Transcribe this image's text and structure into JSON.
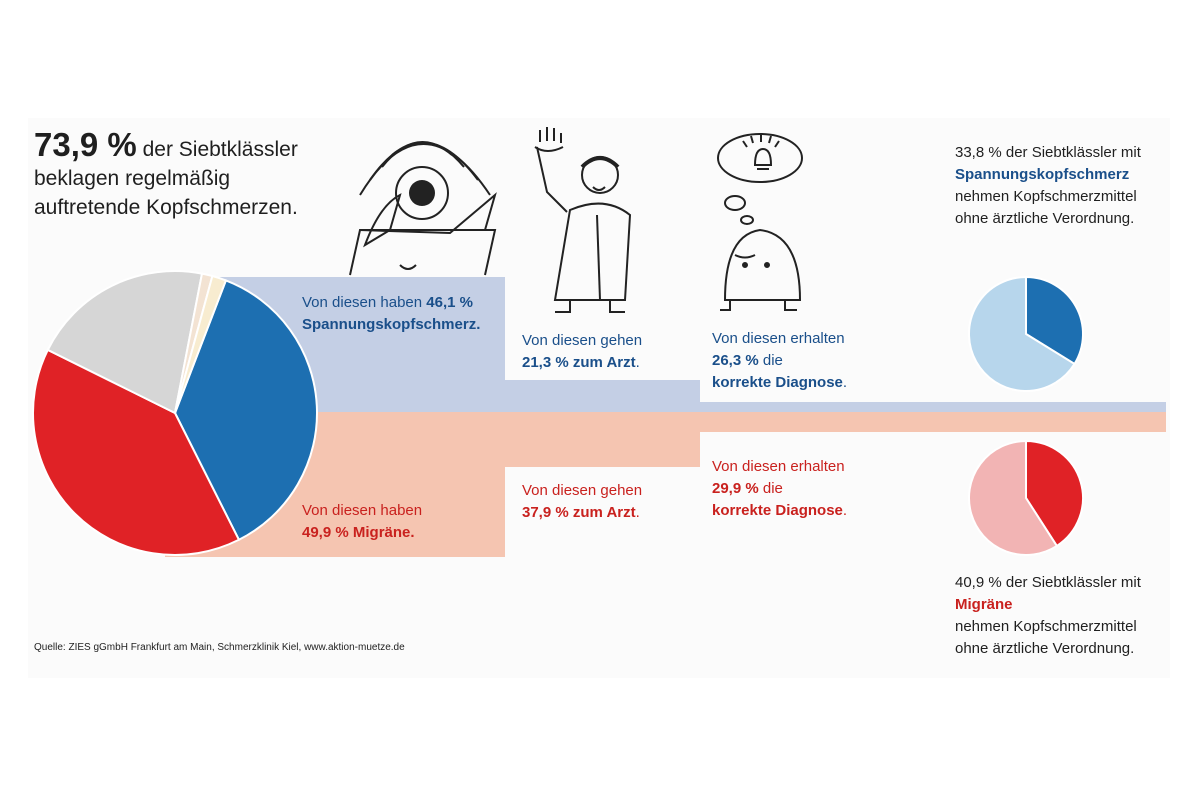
{
  "headline": {
    "big": "73,9 %",
    "rest1": " der Siebtklässler",
    "line2": "beklagen regelmäßig",
    "line3": "auftretende Kopfschmerzen."
  },
  "tension": {
    "have_prefix": "Von diesen haben ",
    "have_value": "46,1 %",
    "have_name": "Spannungskopfschmerz.",
    "doctor_prefix": "Von diesen gehen",
    "doctor_value": "21,3 % zum Arzt",
    "doctor_suffix": ".",
    "diag_prefix": "Von diesen erhalten",
    "diag_value": "26,3 %",
    "diag_mid": " die",
    "diag_name": "korrekte Diagnose",
    "diag_suffix": ".",
    "note_line1": "33,8 % der Siebtklässler mit",
    "note_name": "Spannungskopfschmerz",
    "note_line3": "nehmen Kopfschmerzmittel",
    "note_line4": "ohne ärztliche Verordnung."
  },
  "migraine": {
    "have_prefix": "Von diesen haben",
    "have_value": "49,9 % Migräne.",
    "doctor_prefix": "Von diesen gehen",
    "doctor_value": "37,9 % zum Arzt",
    "doctor_suffix": ".",
    "diag_prefix": "Von diesen erhalten",
    "diag_value": "29,9 %",
    "diag_mid": " die",
    "diag_name": "korrekte Diagnose",
    "diag_suffix": ".",
    "note_line1": "40,9 % der Siebtklässler mit",
    "note_name": "Migräne",
    "note_line3": "nehmen Kopfschmerzmittel",
    "note_line4": "ohne ärztliche Verordnung."
  },
  "source": "Quelle: ZIES gGmbH Frankfurt am Main, Schmerzklinik Kiel, www.aktion-muetze.de",
  "colors": {
    "tension": "#1d6fb1",
    "tension_light": "#b7d6ec",
    "tension_band": "#c4cfe5",
    "migraine": "#e02226",
    "migraine_light": "#f2b4b4",
    "migraine_band": "#f5c5b1",
    "other": "#d6d6d6"
  },
  "chart_data": [
    {
      "type": "pie",
      "slices": [
        {
          "label": "Spannungskopfschmerz",
          "value": 46.1,
          "color": "#1d6fb1"
        },
        {
          "label": "Migräne",
          "value": 49.9,
          "color": "#e02226"
        },
        {
          "label": "",
          "value": 26.0,
          "color": "#d6d6d6"
        },
        {
          "label": "",
          "value": 1.5,
          "color": "#f3e3d3"
        },
        {
          "label": "",
          "value": 2.0,
          "color": "#f8ecd0"
        }
      ]
    },
    {
      "type": "pie",
      "slices": [
        {
          "label": "Spannungskopfschmerz",
          "value": 33.8,
          "color": "#1d6fb1"
        },
        {
          "label": "",
          "value": 66.2,
          "color": "#b7d6ec"
        }
      ]
    },
    {
      "type": "pie",
      "slices": [
        {
          "label": "Migräne",
          "value": 40.9,
          "color": "#e02226"
        },
        {
          "label": "",
          "value": 59.1,
          "color": "#f2b4b4"
        }
      ]
    }
  ]
}
